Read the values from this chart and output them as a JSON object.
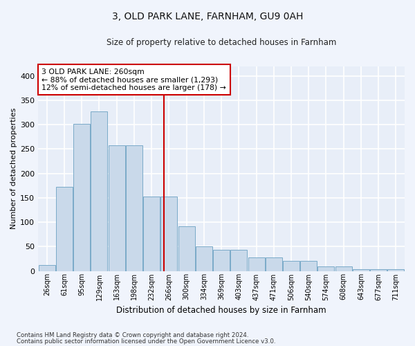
{
  "title1": "3, OLD PARK LANE, FARNHAM, GU9 0AH",
  "title2": "Size of property relative to detached houses in Farnham",
  "xlabel": "Distribution of detached houses by size in Farnham",
  "ylabel": "Number of detached properties",
  "categories": [
    "26sqm",
    "61sqm",
    "95sqm",
    "129sqm",
    "163sqm",
    "198sqm",
    "232sqm",
    "266sqm",
    "300sqm",
    "334sqm",
    "369sqm",
    "403sqm",
    "437sqm",
    "471sqm",
    "506sqm",
    "540sqm",
    "574sqm",
    "608sqm",
    "643sqm",
    "677sqm",
    "711sqm"
  ],
  "bar_heights": [
    12,
    172,
    301,
    327,
    257,
    257,
    152,
    152,
    91,
    50,
    43,
    43,
    27,
    27,
    20,
    20,
    9,
    9,
    4,
    4,
    4
  ],
  "bar_color": "#c9d9ea",
  "bar_edgecolor": "#7aaac8",
  "bg_color": "#e8eef8",
  "grid_color": "#ffffff",
  "property_label": "3 OLD PARK LANE: 260sqm",
  "annotation_line1": "← 88% of detached houses are smaller (1,293)",
  "annotation_line2": "12% of semi-detached houses are larger (178) →",
  "redline_x": 6.72,
  "footnote1": "Contains HM Land Registry data © Crown copyright and database right 2024.",
  "footnote2": "Contains public sector information licensed under the Open Government Licence v3.0.",
  "ylim": [
    0,
    420
  ],
  "yticks": [
    0,
    50,
    100,
    150,
    200,
    250,
    300,
    350,
    400
  ],
  "fig_bg": "#f0f4fc"
}
